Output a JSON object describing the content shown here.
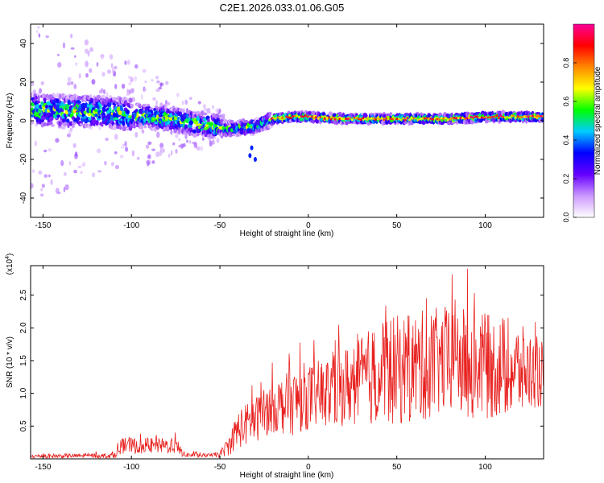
{
  "figure_title": "C2E1.2026.033.01.06.G05",
  "colors": {
    "snr_line": "#e8211f",
    "ridge_core": "#e0302a",
    "axis": "#000000"
  },
  "chart_data": [
    {
      "type": "heatmap",
      "title": "C2E1.2026.033.01.06.G05",
      "xlabel": "Height of straight line (km)",
      "ylabel": "Frequency (Hz)",
      "xlim": [
        -157,
        133
      ],
      "ylim": [
        -50,
        50
      ],
      "x_ticks": [
        -150,
        -100,
        -50,
        0,
        50,
        100
      ],
      "x_tick_labels": [
        "-150",
        "-100",
        "-50",
        "0",
        "50",
        "100"
      ],
      "y_ticks": [
        -40,
        -20,
        0,
        20,
        40
      ],
      "y_tick_labels": [
        "-40",
        "-20",
        "0",
        "20",
        "40"
      ],
      "ridge": {
        "x": [
          -157,
          -140,
          -120,
          -100,
          -80,
          -60,
          -45,
          -30,
          -20,
          -10,
          0,
          20,
          40,
          60,
          80,
          100,
          133
        ],
        "frequency": [
          6,
          5,
          5,
          3,
          1,
          -2,
          -4,
          -3,
          1,
          2,
          2,
          1,
          1,
          1,
          1,
          2,
          2
        ]
      },
      "colorbar": {
        "label": "Normalized spectral amplitude",
        "range": [
          0,
          1
        ],
        "ticks": [
          0.0,
          0.2,
          0.4,
          0.6,
          0.8
        ],
        "tick_labels": [
          "0.0",
          "0.2",
          "0.4",
          "0.6",
          "0.8"
        ],
        "colormap": [
          "#ffffff",
          "#cc99ff",
          "#6600ff",
          "#0000ff",
          "#00ccff",
          "#00ff00",
          "#ffff00",
          "#ff8800",
          "#ff0000",
          "#ff0099"
        ]
      }
    },
    {
      "type": "line",
      "xlabel": "Height of straight line (km)",
      "ylabel": "SNR (10 * v/v)",
      "y_multiplier": "(x10",
      "y_multiplier_exp": "4",
      "y_multiplier_close": ")",
      "xlim": [
        -157,
        133
      ],
      "ylim": [
        0,
        2.95
      ],
      "x_ticks": [
        -150,
        -100,
        -50,
        0,
        50,
        100
      ],
      "x_tick_labels": [
        "-150",
        "-100",
        "-50",
        "0",
        "50",
        "100"
      ],
      "y_ticks": [
        0.5,
        1.0,
        1.5,
        2.0,
        2.5
      ],
      "y_tick_labels": [
        "0.5",
        "1.0",
        "1.5",
        "2.0",
        "2.5"
      ],
      "envelope": {
        "x": [
          -157,
          -110,
          -105,
          -75,
          -70,
          -55,
          -50,
          -45,
          -40,
          -30,
          -20,
          -10,
          0,
          10,
          20,
          30,
          40,
          50,
          60,
          70,
          80,
          90,
          100,
          110,
          120,
          133
        ],
        "mean": [
          0.04,
          0.05,
          0.2,
          0.2,
          0.06,
          0.05,
          0.07,
          0.2,
          0.45,
          0.6,
          0.8,
          0.85,
          0.95,
          1.0,
          1.1,
          1.2,
          1.3,
          1.35,
          1.4,
          1.45,
          1.5,
          1.45,
          1.4,
          1.4,
          1.35,
          1.3
        ],
        "amplitude": [
          0.03,
          0.04,
          0.12,
          0.12,
          0.04,
          0.03,
          0.05,
          0.15,
          0.3,
          0.35,
          0.4,
          0.5,
          0.5,
          0.55,
          0.6,
          0.7,
          0.8,
          0.85,
          0.85,
          0.85,
          0.85,
          0.85,
          0.8,
          0.8,
          0.7,
          0.5
        ]
      }
    }
  ]
}
